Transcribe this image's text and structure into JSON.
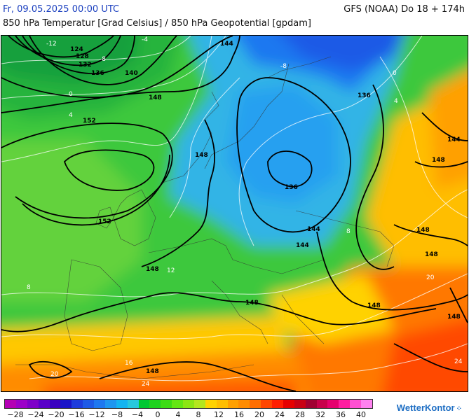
{
  "header": {
    "datetime": "Fr, 09.05.2025 00:00 UTC",
    "model": "GFS (NOAA) Do 18 + 174h",
    "subtitle": "850 hPa Temperatur [Grad Celsius] / 850 hPa Geopotential [gpdam]"
  },
  "map": {
    "geopotential_labels": [
      "124",
      "128",
      "132",
      "136",
      "140",
      "144",
      "148",
      "152",
      "136",
      "144",
      "136",
      "148",
      "152",
      "148",
      "148",
      "144",
      "148",
      "148",
      "148",
      "148",
      "148",
      "148",
      "144"
    ],
    "isotherm_labels": [
      "-12",
      "-8",
      "-4",
      "0",
      "4",
      "8",
      "12",
      "16",
      "20",
      "24",
      "-8",
      "0",
      "4",
      "8",
      "20",
      "24"
    ]
  },
  "legend": {
    "colors": [
      "#b400b4",
      "#9c00c8",
      "#7e00c8",
      "#5a00c8",
      "#3a00c0",
      "#1a14c8",
      "#1e3cdc",
      "#1e5ae6",
      "#1e78f0",
      "#1e96f0",
      "#14b4f0",
      "#28c8dc",
      "#00c832",
      "#1ed21e",
      "#3cdc14",
      "#64e614",
      "#8ce614",
      "#b4e61e",
      "#ffd200",
      "#ffbe00",
      "#ffa000",
      "#ff8c00",
      "#ff6e00",
      "#ff4600",
      "#ff1e00",
      "#e60000",
      "#c80014",
      "#a00032",
      "#c8004b",
      "#e6006e",
      "#ff1ea0",
      "#ff50d2",
      "#ff82f0"
    ],
    "ticks": [
      "−28",
      "−24",
      "−20",
      "−16",
      "−12",
      "−8",
      "−4",
      "0",
      "4",
      "8",
      "12",
      "16",
      "20",
      "24",
      "28",
      "32",
      "36",
      "40"
    ]
  },
  "branding": {
    "logo": "WetterKontor"
  }
}
